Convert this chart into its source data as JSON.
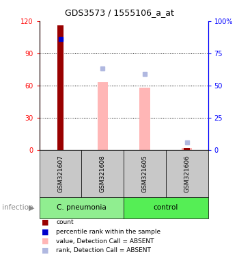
{
  "title": "GDS3573 / 1555106_a_at",
  "samples": [
    "GSM321607",
    "GSM321608",
    "GSM321605",
    "GSM321606"
  ],
  "ylim_left": [
    0,
    120
  ],
  "ylim_right": [
    0,
    100
  ],
  "yticks_left": [
    0,
    30,
    60,
    90,
    120
  ],
  "yticks_right": [
    0,
    25,
    50,
    75,
    100
  ],
  "ytick_labels_left": [
    "0",
    "30",
    "60",
    "90",
    "120"
  ],
  "ytick_labels_right": [
    "0",
    "25",
    "50",
    "75",
    "100%"
  ],
  "count_values": [
    116,
    null,
    null,
    2
  ],
  "percentile_rank_values": [
    86,
    null,
    null,
    null
  ],
  "absent_value_values": [
    null,
    63,
    58,
    2
  ],
  "absent_rank_values": [
    null,
    63,
    59,
    6
  ],
  "bar_color_count": "#990000",
  "bar_color_percentile": "#0000CC",
  "bar_color_absent_value": "#FFB6B6",
  "bar_color_absent_rank": "#B0B8E0",
  "sample_box_color": "#C8C8C8",
  "group_box_color_pneumonia": "#90EE90",
  "group_box_color_control": "#55EE55",
  "legend_items": [
    {
      "color": "#990000",
      "label": "count"
    },
    {
      "color": "#0000CC",
      "label": "percentile rank within the sample"
    },
    {
      "color": "#FFB6B6",
      "label": "value, Detection Call = ABSENT"
    },
    {
      "color": "#B0B8E0",
      "label": "rank, Detection Call = ABSENT"
    }
  ]
}
